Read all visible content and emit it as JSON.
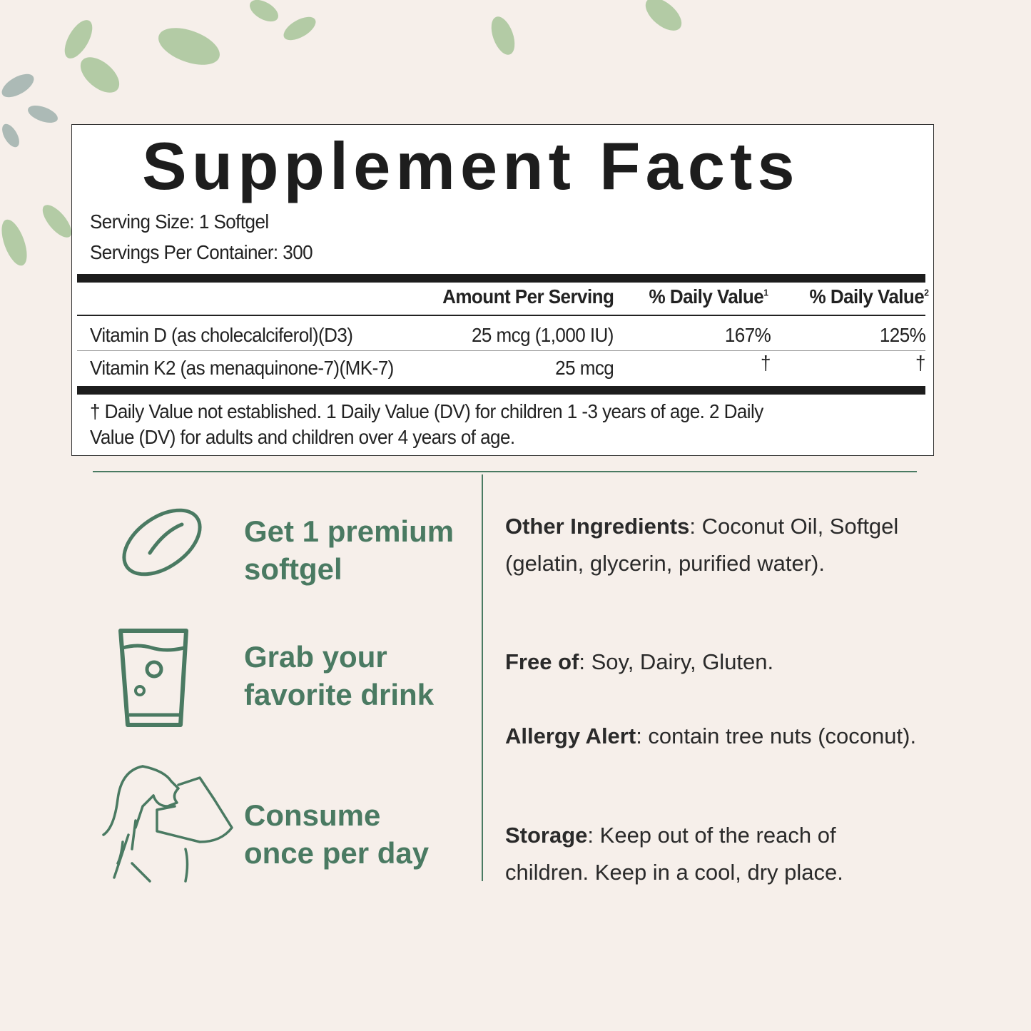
{
  "facts": {
    "title": "Supplement Facts",
    "serving_size": "Serving Size: 1 Softgel",
    "servings_per_container": "Servings Per Container: 300",
    "headers": [
      "Amount Per Serving",
      "% Daily Value",
      "1",
      "% Daily Value",
      "2"
    ],
    "rows": [
      {
        "name": "Vitamin D (as cholecalciferol)(D3)",
        "amount": "25 mcg (1,000 IU)",
        "dv1": "167%",
        "dv2": "125%"
      },
      {
        "name": "Vitamin K2 (as menaquinone-7)(MK-7)",
        "amount": "25 mcg",
        "dv1": "†",
        "dv2": "†"
      }
    ],
    "footnote_line1": "† Daily Value not established. 1 Daily Value (DV) for children 1 -3 years of age. 2 Daily",
    "footnote_line2": "Value (DV) for adults and children over 4 years of age."
  },
  "steps": [
    {
      "line1": "Get 1 premium",
      "line2": "softgel",
      "icon": "softgel-icon"
    },
    {
      "line1": "Grab your",
      "line2": "favorite drink",
      "icon": "glass-icon"
    },
    {
      "line1": "Consume",
      "line2": "once per day",
      "icon": "woman-drinking-icon"
    }
  ],
  "info": [
    {
      "label": "Other Ingredients",
      "text": ": Coconut Oil, Softgel (gelatin, glycerin, purified water)."
    },
    {
      "label": "Free of",
      "text": ": Soy, Dairy, Gluten."
    },
    {
      "label": "Allergy Alert",
      "text": ": contain tree nuts (coconut)."
    },
    {
      "label": "Storage",
      "text": ": Keep out of the reach of children. Keep in a cool, dry place."
    }
  ],
  "colors": {
    "accent": "#4a7a62",
    "background": "#f6efea"
  }
}
